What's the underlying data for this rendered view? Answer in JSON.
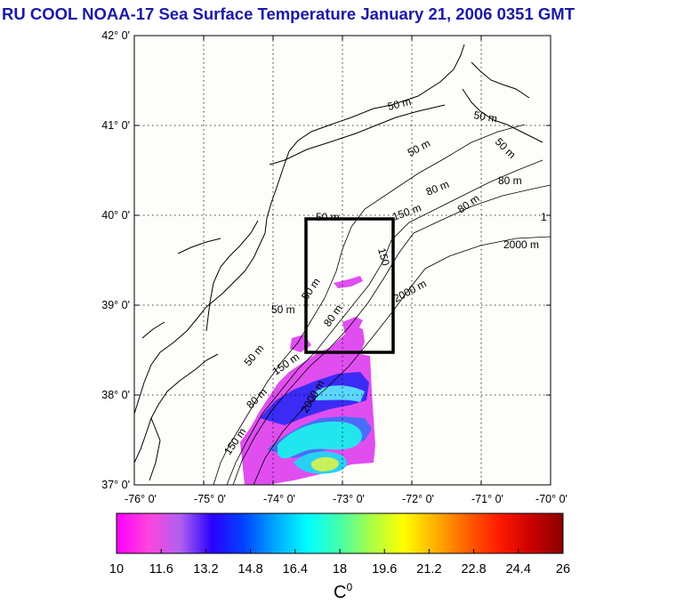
{
  "title": {
    "text": "RU COOL  NOAA-17 Sea Surface Temperature January 21, 2006 0351 GMT",
    "color": "#1a1aa6"
  },
  "map": {
    "lon_range": [
      -76,
      -70
    ],
    "lat_range": [
      37,
      42
    ],
    "lat_labels": [
      "37° 0'",
      "38° 0'",
      "39° 0'",
      "40° 0'",
      "41° 0'",
      "42° 0'"
    ],
    "lon_labels": [
      "-76° 0'",
      "-75° 0'",
      "-74° 0'",
      "-73° 0'",
      "-72° 0'",
      "-71° 0'",
      "-70° 0'"
    ],
    "grid": "dotted",
    "contour_labels": [
      "50 m",
      "50 m",
      "50 m",
      "80 m",
      "80 m",
      "80 m",
      "1",
      "2000 m",
      "50 m",
      "50 m",
      "150 m",
      "50 m",
      "50 m",
      "80 m",
      "2000 m",
      "50 m",
      "150 m",
      "80 m",
      "2000 m",
      "150 m",
      "150"
    ],
    "study_box": {
      "lon": [
        -73.45,
        -72.45
      ],
      "lat": [
        38.5,
        40
      ]
    }
  },
  "colorbar": {
    "min": 10,
    "max": 26,
    "ticks": [
      "10",
      "11.6",
      "13.2",
      "14.8",
      "16.4",
      "18",
      "19.6",
      "21.2",
      "22.8",
      "24.4",
      "26"
    ],
    "unit": "C",
    "unit_sup": "0",
    "colors": [
      "#ff00ff",
      "#ff44dd",
      "#b060f0",
      "#2a00ff",
      "#0044ff",
      "#00aaff",
      "#00ffff",
      "#44ffaa",
      "#aaff44",
      "#ffff00",
      "#ffb000",
      "#ff6000",
      "#ff1a00",
      "#cc0000",
      "#8a0000"
    ]
  }
}
